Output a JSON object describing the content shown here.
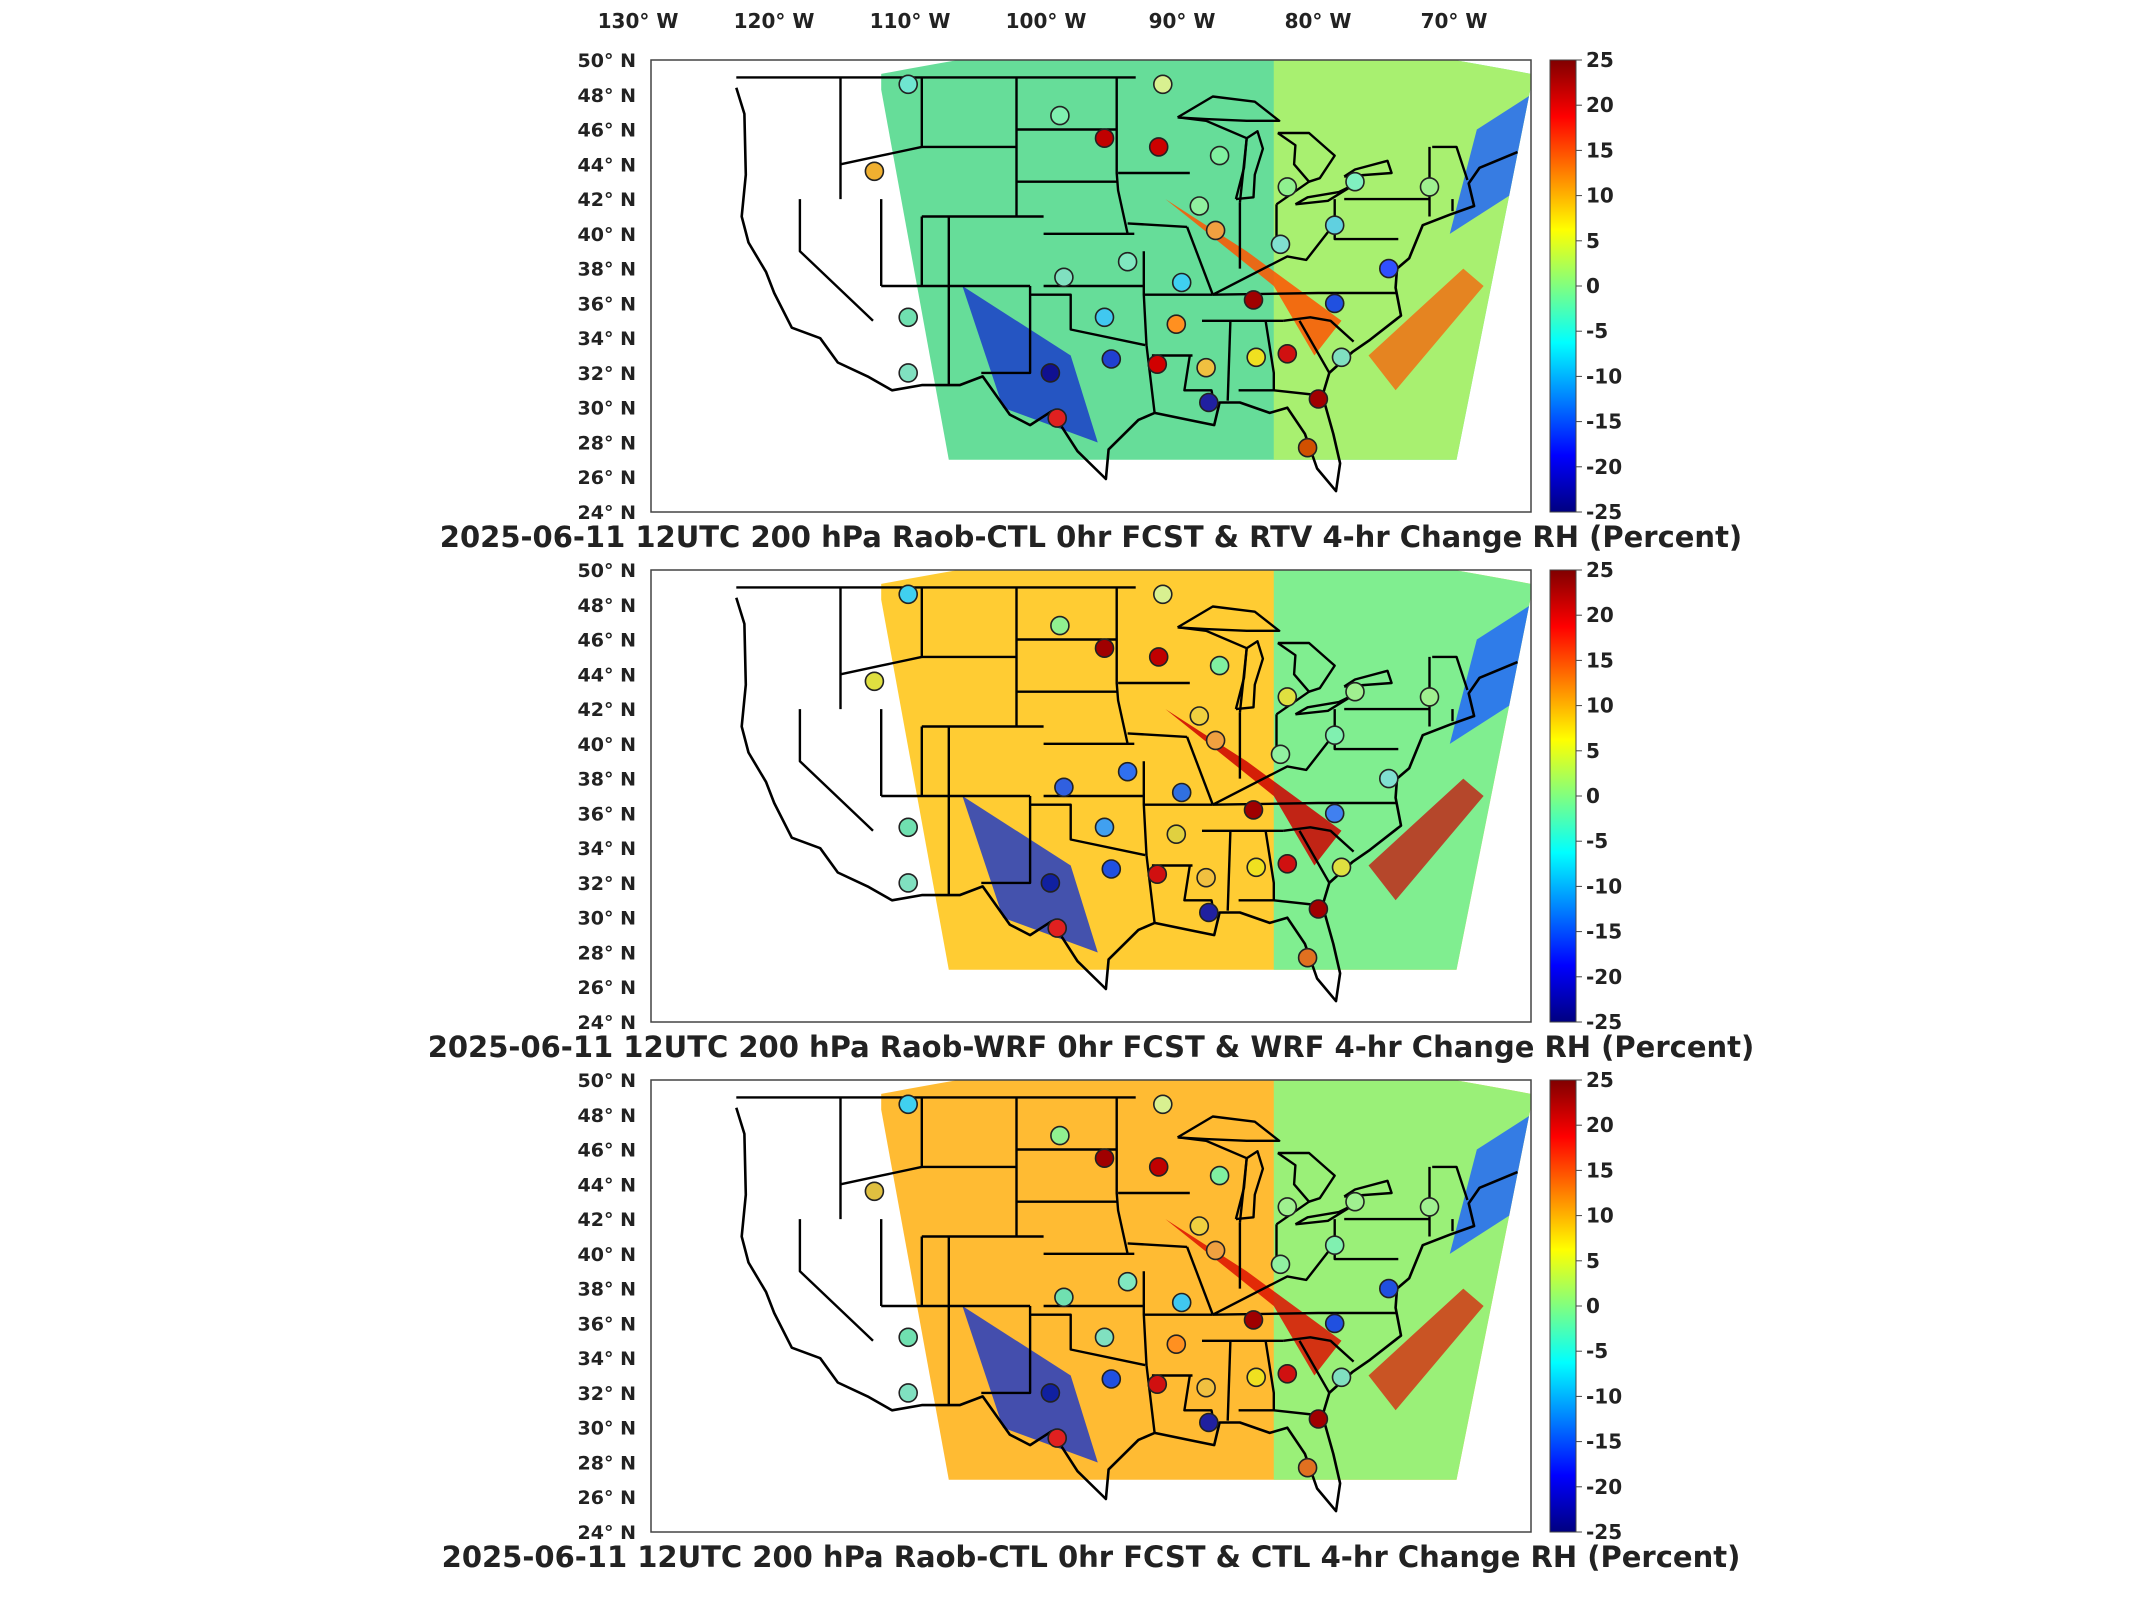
{
  "top_lon_labels": [
    "130° W",
    "120° W",
    "110° W",
    "100° W",
    "90° W",
    "80° W",
    "70° W"
  ],
  "lat_labels": [
    "50° N",
    "48° N",
    "46° N",
    "44° N",
    "42° N",
    "40° N",
    "38° N",
    "36° N",
    "34° N",
    "32° N",
    "30° N",
    "28° N",
    "26° N",
    "24° N"
  ],
  "colorbar": {
    "ticks": [
      "25",
      "20",
      "15",
      "10",
      "5",
      "0",
      "-5",
      "-10",
      "-15",
      "-20",
      "-25"
    ],
    "stops": [
      "#000080",
      "#0000ff",
      "#0080ff",
      "#00ffff",
      "#80ff80",
      "#ffff00",
      "#ff8000",
      "#ff0000",
      "#800000"
    ]
  },
  "panels": [
    {
      "title": "2025-06-11 12UTC 200 hPa Raob-CTL 0hr FCST & RTV 4-hr Change RH (Percent)",
      "field_colors": {
        "background": "#66dd99",
        "east": "#a8f070",
        "band": "#ff5500"
      },
      "stations": [
        {
          "lon": -112.0,
          "lat": 48.6,
          "color": "#6fe6d0"
        },
        {
          "lon": -100.8,
          "lat": 46.8,
          "color": "#7ff0b0"
        },
        {
          "lon": -97.5,
          "lat": 45.5,
          "color": "#c00000"
        },
        {
          "lon": -93.5,
          "lat": 45.0,
          "color": "#cc0000"
        },
        {
          "lon": -93.2,
          "lat": 48.6,
          "color": "#d8f090"
        },
        {
          "lon": -114.5,
          "lat": 43.6,
          "color": "#f0b030"
        },
        {
          "lon": -89.0,
          "lat": 44.5,
          "color": "#80f0a0"
        },
        {
          "lon": -84.0,
          "lat": 42.7,
          "color": "#90f090"
        },
        {
          "lon": -79.0,
          "lat": 43.0,
          "color": "#80f0c0"
        },
        {
          "lon": -73.5,
          "lat": 42.7,
          "color": "#a0f090"
        },
        {
          "lon": -90.5,
          "lat": 41.6,
          "color": "#90f0a0"
        },
        {
          "lon": -89.3,
          "lat": 40.2,
          "color": "#f0a040"
        },
        {
          "lon": -84.5,
          "lat": 39.4,
          "color": "#80e0d0"
        },
        {
          "lon": -80.5,
          "lat": 40.5,
          "color": "#60d0e0"
        },
        {
          "lon": -76.5,
          "lat": 38.0,
          "color": "#3050ff"
        },
        {
          "lon": -100.5,
          "lat": 37.5,
          "color": "#80e0c0"
        },
        {
          "lon": -95.8,
          "lat": 38.4,
          "color": "#80e8c0"
        },
        {
          "lon": -91.8,
          "lat": 37.2,
          "color": "#3fd0f0"
        },
        {
          "lon": -86.5,
          "lat": 36.2,
          "color": "#a00000"
        },
        {
          "lon": -80.5,
          "lat": 36.0,
          "color": "#2050e0"
        },
        {
          "lon": -112.0,
          "lat": 35.2,
          "color": "#70e0b0"
        },
        {
          "lon": -97.5,
          "lat": 35.2,
          "color": "#40c8f0"
        },
        {
          "lon": -92.2,
          "lat": 34.8,
          "color": "#ff9020"
        },
        {
          "lon": -97.0,
          "lat": 32.8,
          "color": "#2040d0"
        },
        {
          "lon": -93.6,
          "lat": 32.5,
          "color": "#d00000"
        },
        {
          "lon": -90.0,
          "lat": 32.3,
          "color": "#f0c040"
        },
        {
          "lon": -86.3,
          "lat": 32.9,
          "color": "#f0e020"
        },
        {
          "lon": -84.0,
          "lat": 33.1,
          "color": "#d01010"
        },
        {
          "lon": -80.0,
          "lat": 32.9,
          "color": "#80e0c0"
        },
        {
          "lon": -101.5,
          "lat": 32.0,
          "color": "#101090"
        },
        {
          "lon": -112.0,
          "lat": 32.0,
          "color": "#80e0c0"
        },
        {
          "lon": -89.8,
          "lat": 30.3,
          "color": "#2020a0"
        },
        {
          "lon": -81.7,
          "lat": 30.5,
          "color": "#a00000"
        },
        {
          "lon": -101.0,
          "lat": 29.4,
          "color": "#e02020"
        },
        {
          "lon": -82.5,
          "lat": 27.7,
          "color": "#d05000"
        }
      ]
    },
    {
      "title": "2025-06-11 12UTC 200 hPa Raob-WRF 0hr FCST & WRF 4-hr Change RH (Percent)",
      "field_colors": {
        "background": "#ffcc33",
        "east": "#80ee90",
        "band": "#cc0000"
      },
      "stations": [
        {
          "lon": -112.0,
          "lat": 48.6,
          "color": "#40d0f0"
        },
        {
          "lon": -100.8,
          "lat": 46.8,
          "color": "#90f090"
        },
        {
          "lon": -97.5,
          "lat": 45.5,
          "color": "#a00000"
        },
        {
          "lon": -93.5,
          "lat": 45.0,
          "color": "#c00000"
        },
        {
          "lon": -93.2,
          "lat": 48.6,
          "color": "#d8f090"
        },
        {
          "lon": -114.5,
          "lat": 43.6,
          "color": "#e0e040"
        },
        {
          "lon": -89.0,
          "lat": 44.5,
          "color": "#80f0a0"
        },
        {
          "lon": -84.0,
          "lat": 42.7,
          "color": "#e0e040"
        },
        {
          "lon": -79.0,
          "lat": 43.0,
          "color": "#a0f090"
        },
        {
          "lon": -73.5,
          "lat": 42.7,
          "color": "#a0f090"
        },
        {
          "lon": -90.5,
          "lat": 41.6,
          "color": "#f0d040"
        },
        {
          "lon": -89.3,
          "lat": 40.2,
          "color": "#f0a040"
        },
        {
          "lon": -84.5,
          "lat": 39.4,
          "color": "#90f0a0"
        },
        {
          "lon": -80.5,
          "lat": 40.5,
          "color": "#80f0b0"
        },
        {
          "lon": -76.5,
          "lat": 38.0,
          "color": "#80e0d0"
        },
        {
          "lon": -100.5,
          "lat": 37.5,
          "color": "#3060e0"
        },
        {
          "lon": -95.8,
          "lat": 38.4,
          "color": "#3070f0"
        },
        {
          "lon": -91.8,
          "lat": 37.2,
          "color": "#3070e0"
        },
        {
          "lon": -86.5,
          "lat": 36.2,
          "color": "#a00000"
        },
        {
          "lon": -80.5,
          "lat": 36.0,
          "color": "#4080f0"
        },
        {
          "lon": -112.0,
          "lat": 35.2,
          "color": "#70e0b0"
        },
        {
          "lon": -97.5,
          "lat": 35.2,
          "color": "#40a0f0"
        },
        {
          "lon": -92.2,
          "lat": 34.8,
          "color": "#e0d040"
        },
        {
          "lon": -97.0,
          "lat": 32.8,
          "color": "#2050e0"
        },
        {
          "lon": -93.6,
          "lat": 32.5,
          "color": "#d01010"
        },
        {
          "lon": -90.0,
          "lat": 32.3,
          "color": "#f0c040"
        },
        {
          "lon": -86.3,
          "lat": 32.9,
          "color": "#f0e020"
        },
        {
          "lon": -84.0,
          "lat": 33.1,
          "color": "#d01010"
        },
        {
          "lon": -80.0,
          "lat": 32.9,
          "color": "#e0e040"
        },
        {
          "lon": -101.5,
          "lat": 32.0,
          "color": "#1020a0"
        },
        {
          "lon": -112.0,
          "lat": 32.0,
          "color": "#80e0c0"
        },
        {
          "lon": -89.8,
          "lat": 30.3,
          "color": "#2020a0"
        },
        {
          "lon": -81.7,
          "lat": 30.5,
          "color": "#a00000"
        },
        {
          "lon": -101.0,
          "lat": 29.4,
          "color": "#e02020"
        },
        {
          "lon": -82.5,
          "lat": 27.7,
          "color": "#e07020"
        }
      ]
    },
    {
      "title": "2025-06-11 12UTC 200 hPa Raob-CTL 0hr FCST & CTL 4-hr Change RH (Percent)",
      "field_colors": {
        "background": "#ffbb33",
        "east": "#9af078",
        "band": "#dd1100"
      },
      "stations": [
        {
          "lon": -112.0,
          "lat": 48.6,
          "color": "#40d0f0"
        },
        {
          "lon": -100.8,
          "lat": 46.8,
          "color": "#90f090"
        },
        {
          "lon": -97.5,
          "lat": 45.5,
          "color": "#a00000"
        },
        {
          "lon": -93.5,
          "lat": 45.0,
          "color": "#c00000"
        },
        {
          "lon": -93.2,
          "lat": 48.6,
          "color": "#d8f090"
        },
        {
          "lon": -114.5,
          "lat": 43.6,
          "color": "#e0c040"
        },
        {
          "lon": -89.0,
          "lat": 44.5,
          "color": "#80f0a0"
        },
        {
          "lon": -84.0,
          "lat": 42.7,
          "color": "#a0f090"
        },
        {
          "lon": -79.0,
          "lat": 43.0,
          "color": "#a0f090"
        },
        {
          "lon": -73.5,
          "lat": 42.7,
          "color": "#a0f090"
        },
        {
          "lon": -90.5,
          "lat": 41.6,
          "color": "#f0d040"
        },
        {
          "lon": -89.3,
          "lat": 40.2,
          "color": "#f0a040"
        },
        {
          "lon": -84.5,
          "lat": 39.4,
          "color": "#90f0a0"
        },
        {
          "lon": -80.5,
          "lat": 40.5,
          "color": "#80f0b0"
        },
        {
          "lon": -76.5,
          "lat": 38.0,
          "color": "#2050e0"
        },
        {
          "lon": -100.5,
          "lat": 37.5,
          "color": "#70e0b0"
        },
        {
          "lon": -95.8,
          "lat": 38.4,
          "color": "#80e8c0"
        },
        {
          "lon": -91.8,
          "lat": 37.2,
          "color": "#40c8f0"
        },
        {
          "lon": -86.5,
          "lat": 36.2,
          "color": "#a00000"
        },
        {
          "lon": -80.5,
          "lat": 36.0,
          "color": "#2050e0"
        },
        {
          "lon": -112.0,
          "lat": 35.2,
          "color": "#70e0b0"
        },
        {
          "lon": -97.5,
          "lat": 35.2,
          "color": "#80e0c0"
        },
        {
          "lon": -92.2,
          "lat": 34.8,
          "color": "#ff9020"
        },
        {
          "lon": -97.0,
          "lat": 32.8,
          "color": "#2050e0"
        },
        {
          "lon": -93.6,
          "lat": 32.5,
          "color": "#d01010"
        },
        {
          "lon": -90.0,
          "lat": 32.3,
          "color": "#f0c040"
        },
        {
          "lon": -86.3,
          "lat": 32.9,
          "color": "#f0e020"
        },
        {
          "lon": -84.0,
          "lat": 33.1,
          "color": "#d01010"
        },
        {
          "lon": -80.0,
          "lat": 32.9,
          "color": "#80e0c0"
        },
        {
          "lon": -101.5,
          "lat": 32.0,
          "color": "#1020a0"
        },
        {
          "lon": -112.0,
          "lat": 32.0,
          "color": "#80e0c0"
        },
        {
          "lon": -89.8,
          "lat": 30.3,
          "color": "#2020a0"
        },
        {
          "lon": -81.7,
          "lat": 30.5,
          "color": "#a00000"
        },
        {
          "lon": -101.0,
          "lat": 29.4,
          "color": "#e02020"
        },
        {
          "lon": -82.5,
          "lat": 27.7,
          "color": "#e07020"
        }
      ]
    }
  ]
}
